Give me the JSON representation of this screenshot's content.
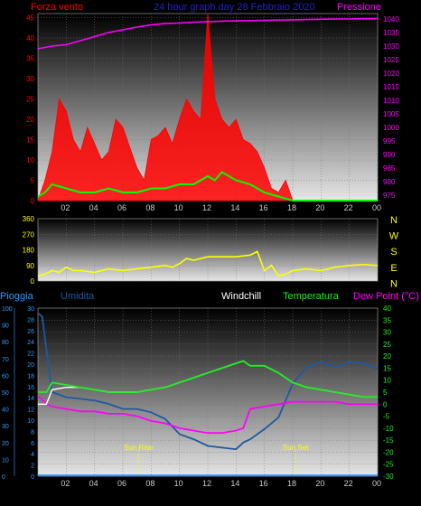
{
  "header": {
    "left_label": "Forza vento",
    "title": "24 hour graph day  28 Febbraio 2020",
    "right_label": "Pressione"
  },
  "colors": {
    "wind": "#ff0000",
    "gust_avg": "#00ff00",
    "pressure": "#ff00ff",
    "direction": "#ffff00",
    "humidity": "#1e5aa0",
    "temperature": "#22ee22",
    "dewpoint": "#ff00ff",
    "windchill": "#ffffff",
    "rain": "#3399ff",
    "sun_marker": "#ffff00",
    "title": "#2222cc"
  },
  "chart_data": [
    {
      "type": "line",
      "name": "wind-pressure",
      "x_ticks": [
        "02",
        "04",
        "06",
        "08",
        "10",
        "12",
        "14",
        "16",
        "18",
        "20",
        "22",
        "00"
      ],
      "xlim": [
        0,
        24
      ],
      "y_left": {
        "label": "Forza vento",
        "ticks": [
          0,
          5,
          10,
          15,
          20,
          25,
          30,
          35,
          40,
          45
        ],
        "ylim": [
          0,
          46
        ]
      },
      "y_right": {
        "label": "Pressione",
        "ticks": [
          975,
          980,
          985,
          990,
          995,
          1000,
          1005,
          1010,
          1015,
          1020,
          1025,
          1030,
          1035,
          1040
        ],
        "ylim": [
          973,
          1042
        ]
      },
      "series": [
        {
          "axis": "right",
          "x": [
            0,
            1,
            2,
            3,
            4,
            5,
            6,
            7,
            8,
            9,
            10,
            11,
            12,
            13,
            14,
            15,
            16,
            17,
            18,
            19,
            20,
            21,
            22,
            23,
            24
          ],
          "values": [
            1029,
            1030,
            1030.5,
            1032,
            1033.5,
            1035,
            1036,
            1037,
            1037.8,
            1038.3,
            1038.5,
            1038.8,
            1039,
            1039.2,
            1039.3,
            1039.4,
            1039.5,
            1039.6,
            1039.7,
            1039.8,
            1039.9,
            1040,
            1040,
            1040.1,
            1040.1
          ]
        },
        {
          "axis": "left",
          "x": [
            0,
            0.5,
            1,
            1.5,
            2,
            2.5,
            3,
            3.5,
            4,
            4.5,
            5,
            5.5,
            6,
            6.5,
            7,
            7.5,
            8,
            8.5,
            9,
            9.5,
            10,
            10.5,
            11,
            11.5,
            12,
            12.5,
            13,
            13.5,
            14,
            14.5,
            15,
            15.5,
            16,
            16.5,
            17,
            17.5,
            18,
            18.5,
            19,
            20,
            21,
            22,
            23,
            24
          ],
          "values": [
            0,
            5,
            12,
            25,
            22,
            15,
            12,
            18,
            14,
            10,
            12,
            20,
            18,
            13,
            8,
            5,
            15,
            16,
            18,
            14,
            20,
            25,
            22,
            20,
            46,
            25,
            20,
            18,
            20,
            15,
            14,
            12,
            8,
            3,
            2,
            5,
            0,
            0,
            0,
            0,
            0,
            0,
            0,
            0
          ]
        },
        {
          "axis": "left",
          "x": [
            0,
            0.5,
            1,
            2,
            3,
            4,
            5,
            6,
            7,
            8,
            9,
            10,
            11,
            12,
            12.5,
            13,
            14,
            15,
            15.5,
            16,
            17,
            18,
            20,
            22,
            24
          ],
          "values": [
            1,
            2,
            4,
            3,
            2,
            2,
            3,
            2,
            2,
            3,
            3,
            4,
            4,
            6,
            5,
            7,
            5,
            4,
            3,
            2,
            1,
            0,
            0,
            0,
            0
          ]
        }
      ]
    },
    {
      "type": "line",
      "name": "wind-direction",
      "xlim": [
        0,
        24
      ],
      "y_left": {
        "ticks": [
          0,
          90,
          180,
          270,
          360
        ],
        "ylim": [
          0,
          360
        ]
      },
      "y_right": {
        "labels": [
          "N",
          "W",
          "S",
          "E",
          "N"
        ]
      },
      "series": [
        {
          "x": [
            0,
            0.5,
            1,
            1.5,
            2,
            2.5,
            3,
            4,
            5,
            6,
            7,
            8,
            9,
            9.5,
            10,
            10.5,
            11,
            12,
            13,
            14,
            15,
            15.5,
            16,
            16.5,
            17,
            17.5,
            18,
            19,
            20,
            21,
            22,
            23,
            24
          ],
          "values": [
            30,
            40,
            60,
            50,
            80,
            60,
            60,
            50,
            70,
            60,
            70,
            80,
            90,
            80,
            100,
            130,
            120,
            140,
            140,
            140,
            150,
            170,
            60,
            90,
            30,
            40,
            60,
            70,
            60,
            80,
            90,
            95,
            90
          ]
        }
      ]
    },
    {
      "type": "line",
      "name": "temperature-humidity",
      "x_ticks": [
        "02",
        "04",
        "06",
        "08",
        "10",
        "12",
        "14",
        "16",
        "18",
        "20",
        "22",
        "00"
      ],
      "xlim": [
        0,
        24
      ],
      "labels": [
        "Pioggia",
        "Umidita",
        "Windchill",
        "Temperatura",
        "Dew Point (°C)"
      ],
      "y_left_outer": {
        "label": "Pioggia",
        "ticks": [
          0,
          10,
          20,
          30,
          40,
          50,
          60,
          70,
          80,
          90,
          100
        ],
        "ylim": [
          0,
          100
        ]
      },
      "y_left_inner": {
        "label": "Umidita",
        "ticks": [
          0,
          2,
          4,
          6,
          8,
          10,
          12,
          14,
          16,
          18,
          20,
          22,
          24,
          26,
          28,
          30
        ],
        "ylim": [
          0,
          30
        ]
      },
      "y_right": {
        "label": "Dew Point (°C)",
        "ticks": [
          -30,
          -25,
          -20,
          -15,
          -10,
          -5,
          0,
          5,
          10,
          15,
          20,
          25,
          30,
          35,
          40
        ],
        "ylim": [
          -30,
          40
        ]
      },
      "annotations": [
        {
          "label": "Sun Rise",
          "x": 7.1
        },
        {
          "label": "Sun Set",
          "x": 18.2
        }
      ],
      "series": [
        {
          "axis": "right",
          "x": [
            0,
            0.3,
            0.6,
            1,
            2,
            3,
            4,
            5,
            6,
            7,
            8,
            9,
            10,
            11,
            12,
            13,
            14,
            14.5,
            15,
            16,
            17,
            18,
            19,
            20,
            21,
            22,
            23,
            24
          ],
          "values": [
            5,
            5,
            5,
            9,
            8,
            7,
            6,
            5,
            5,
            5,
            6,
            7,
            9,
            11,
            13,
            15,
            17,
            18,
            16,
            16,
            13,
            9,
            7,
            6,
            5,
            4,
            3,
            3
          ]
        },
        {
          "axis": "right",
          "x": [
            0,
            0.3,
            0.6,
            1,
            2,
            3,
            4,
            5,
            6,
            7,
            8,
            9,
            10,
            11,
            12,
            13,
            14,
            14.5,
            15,
            16,
            17,
            18,
            19,
            20,
            21,
            22,
            23,
            24
          ],
          "values": [
            0,
            0,
            0,
            6,
            7,
            7,
            6,
            5,
            5,
            5,
            6,
            7,
            9,
            11,
            13,
            15,
            17,
            18,
            16,
            16,
            13,
            9,
            7,
            6,
            5,
            4,
            3,
            3
          ]
        },
        {
          "axis": "right",
          "x": [
            0,
            0.3,
            0.6,
            1,
            2,
            3,
            4,
            5,
            6,
            7,
            8,
            9,
            10,
            11,
            12,
            13,
            14,
            14.5,
            15,
            16,
            17,
            18,
            19,
            20,
            21,
            22,
            23,
            24
          ],
          "values": [
            3,
            2,
            0,
            -1,
            -2,
            -3,
            -3,
            -4,
            -4,
            -5,
            -7,
            -8,
            -10,
            -11,
            -12,
            -12,
            -11,
            -10,
            -2,
            -1,
            0,
            1,
            1,
            1,
            1,
            0,
            0,
            0
          ]
        },
        {
          "axis": "left_outer",
          "x": [
            0,
            0.3,
            0.6,
            1,
            2,
            3,
            4,
            5,
            6,
            7,
            8,
            9,
            10,
            11,
            12,
            13,
            14,
            14.5,
            15,
            16,
            17,
            17.5,
            18,
            19,
            20,
            21,
            22,
            23,
            24
          ],
          "values": [
            97,
            95,
            75,
            50,
            47,
            46,
            45,
            43,
            40,
            40,
            38,
            34,
            25,
            22,
            18,
            17,
            16,
            20,
            22,
            28,
            35,
            45,
            55,
            65,
            68,
            65,
            68,
            67,
            64
          ]
        },
        {
          "axis": "left_outer",
          "x": [
            0,
            24
          ],
          "values": [
            0.5,
            0.5
          ]
        }
      ]
    }
  ]
}
